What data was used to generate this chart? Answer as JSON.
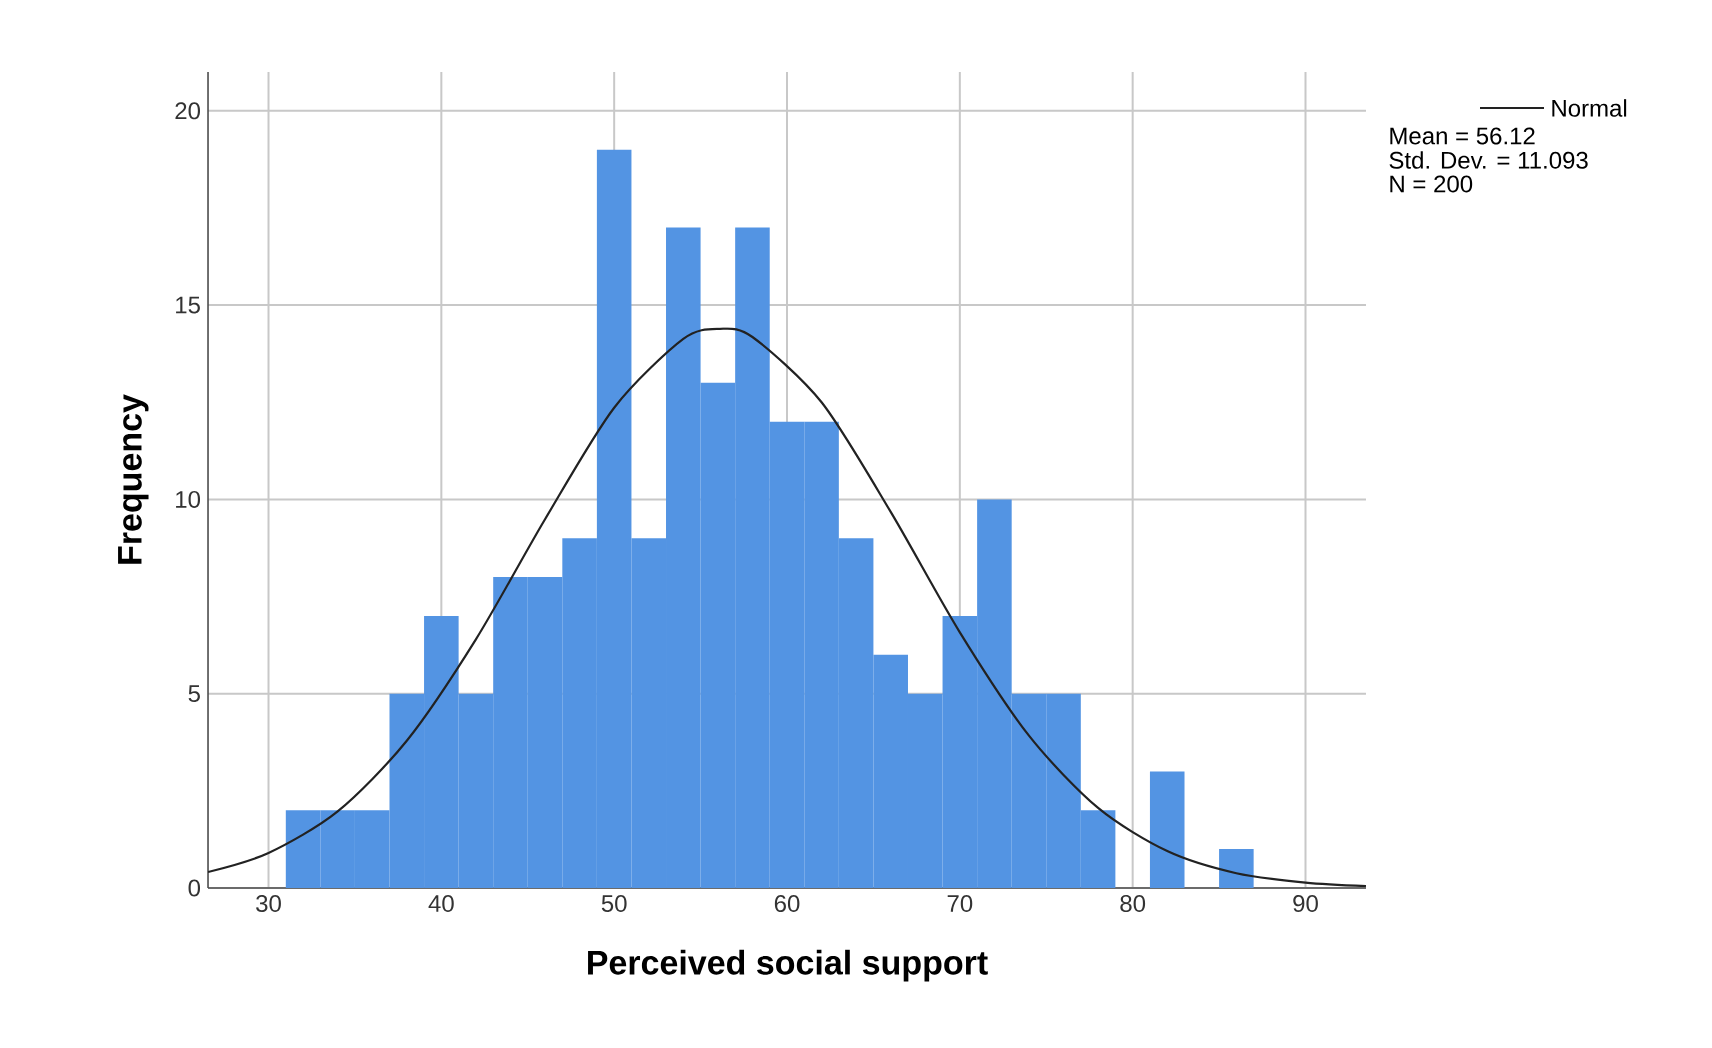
{
  "chart_data": {
    "type": "histogram",
    "xlabel": "Perceived social support",
    "ylabel": "Frequency",
    "xlim": [
      26.5,
      93.5
    ],
    "ylim": [
      0,
      21
    ],
    "xticks": [
      30,
      40,
      50,
      60,
      70,
      80,
      90
    ],
    "yticks": [
      0,
      5,
      10,
      15,
      20
    ],
    "grid": true,
    "legend": "top right",
    "series": [
      {
        "color": "#5394e3",
        "bins": [
          31,
          33,
          35,
          37,
          39,
          41,
          43,
          45,
          47,
          49,
          51,
          53,
          55,
          57,
          59,
          61,
          63,
          65,
          67,
          69,
          71,
          73,
          75,
          77,
          79,
          81,
          83,
          85,
          87
        ],
        "values": [
          2,
          2,
          2,
          5,
          7,
          5,
          8,
          8,
          9,
          19,
          9,
          17,
          13,
          17,
          12,
          12,
          9,
          6,
          5,
          7,
          10,
          5,
          5,
          2,
          0,
          3,
          0,
          1
        ]
      },
      {
        "type": "line",
        "name": "Normal",
        "color": "#222222",
        "x": [
          26.5,
          30,
          34,
          38,
          42,
          46,
          50,
          54,
          56.12,
          58,
          62,
          66,
          70,
          74,
          78,
          82,
          86,
          90,
          93.5
        ],
        "values": [
          0.41,
          0.9,
          1.97,
          3.79,
          6.4,
          9.49,
          12.36,
          14.13,
          14.39,
          14.18,
          12.5,
          9.68,
          6.58,
          3.92,
          2.06,
          0.95,
          0.38,
          0.14,
          0.05
        ]
      }
    ],
    "annotations": [
      "Mean = 56.12",
      "Std. Dev. = 11.093",
      "N = 200"
    ]
  }
}
